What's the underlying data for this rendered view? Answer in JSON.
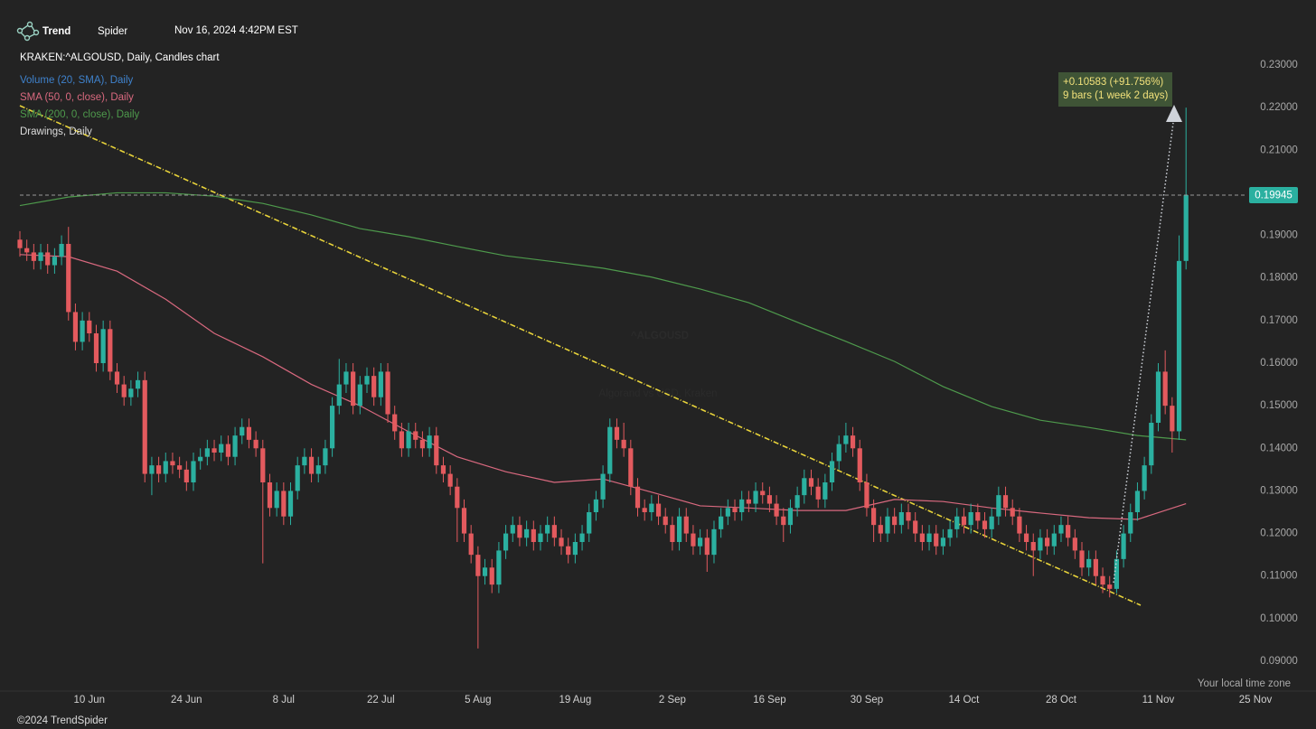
{
  "header": {
    "brand_bold": "Trend",
    "brand_light": "Spider",
    "timestamp": "Nov 16, 2024 4:42PM EST"
  },
  "footer": {
    "copyright": "©2024 TrendSpider",
    "timezone_note": "Your local time zone"
  },
  "chart_data": {
    "type": "candlestick",
    "title": "KRAKEN:^ALGOUSD, Daily, Candles chart",
    "watermark": "^ALGOUSD",
    "watermark_subtitle": "Algorand vs USD, Kraken",
    "up_color": "#2bb0a0",
    "down_color": "#e35a5e",
    "annotations": [
      "+0.10583 (+91.756%)",
      "9 bars (1 week 2 days)"
    ],
    "categories": [
      null,
      null,
      null,
      null,
      null,
      null,
      null,
      null,
      null,
      null,
      "10 Jun",
      null,
      null,
      null,
      null,
      null,
      null,
      null,
      null,
      null,
      null,
      null,
      null,
      null,
      "24 Jun",
      null,
      null,
      null,
      null,
      null,
      null,
      null,
      null,
      null,
      null,
      null,
      null,
      null,
      "8 Jul",
      null,
      null,
      null,
      null,
      null,
      null,
      null,
      null,
      null,
      null,
      null,
      null,
      null,
      "22 Jul",
      null,
      null,
      null,
      null,
      null,
      null,
      null,
      null,
      null,
      null,
      null,
      null,
      null,
      "5 Aug",
      null,
      null,
      null,
      null,
      null,
      null,
      null,
      null,
      null,
      null,
      null,
      null,
      null,
      "19 Aug",
      null,
      null,
      null,
      null,
      null,
      null,
      null,
      null,
      null,
      null,
      null,
      null,
      null,
      "2 Sep",
      null,
      null,
      null,
      null,
      null,
      null,
      null,
      null,
      null,
      null,
      null,
      null,
      null,
      "16 Sep",
      null,
      null,
      null,
      null,
      null,
      null,
      null,
      null,
      null,
      null,
      null,
      null,
      null,
      "30 Sep",
      null,
      null,
      null,
      null,
      null,
      null,
      null,
      null,
      null,
      null,
      null,
      null,
      null,
      "14 Oct",
      null,
      null,
      null,
      null,
      null,
      null,
      null,
      null,
      null,
      null,
      null,
      null,
      null,
      "28 Oct",
      null,
      null,
      null,
      null,
      null,
      null,
      null,
      null,
      null,
      null,
      null,
      null,
      null,
      "11 Nov",
      null,
      null,
      null,
      null,
      null,
      null,
      null,
      null,
      null,
      null,
      null,
      null,
      null,
      "25 Nov"
    ],
    "ohlc": [
      [
        0.189,
        0.191,
        0.185,
        0.187
      ],
      [
        0.187,
        0.189,
        0.184,
        0.186
      ],
      [
        0.186,
        0.188,
        0.182,
        0.184
      ],
      [
        0.184,
        0.188,
        0.182,
        0.186
      ],
      [
        0.186,
        0.188,
        0.181,
        0.183
      ],
      [
        0.183,
        0.187,
        0.181,
        0.185
      ],
      [
        0.185,
        0.19,
        0.183,
        0.188
      ],
      [
        0.188,
        0.192,
        0.17,
        0.172
      ],
      [
        0.172,
        0.174,
        0.163,
        0.165
      ],
      [
        0.165,
        0.172,
        0.163,
        0.17
      ],
      [
        0.17,
        0.172,
        0.165,
        0.167
      ],
      [
        0.167,
        0.169,
        0.158,
        0.16
      ],
      [
        0.16,
        0.17,
        0.158,
        0.168
      ],
      [
        0.168,
        0.17,
        0.156,
        0.158
      ],
      [
        0.158,
        0.16,
        0.153,
        0.155
      ],
      [
        0.155,
        0.157,
        0.15,
        0.152
      ],
      [
        0.152,
        0.156,
        0.15,
        0.154
      ],
      [
        0.154,
        0.158,
        0.152,
        0.156
      ],
      [
        0.156,
        0.158,
        0.132,
        0.134
      ],
      [
        0.134,
        0.138,
        0.129,
        0.136
      ],
      [
        0.136,
        0.138,
        0.132,
        0.134
      ],
      [
        0.134,
        0.139,
        0.132,
        0.137
      ],
      [
        0.137,
        0.139,
        0.134,
        0.136
      ],
      [
        0.136,
        0.138,
        0.133,
        0.135
      ],
      [
        0.135,
        0.137,
        0.13,
        0.132
      ],
      [
        0.132,
        0.139,
        0.13,
        0.137
      ],
      [
        0.137,
        0.14,
        0.135,
        0.138
      ],
      [
        0.138,
        0.142,
        0.136,
        0.14
      ],
      [
        0.14,
        0.142,
        0.137,
        0.139
      ],
      [
        0.139,
        0.143,
        0.137,
        0.141
      ],
      [
        0.141,
        0.143,
        0.136,
        0.138
      ],
      [
        0.138,
        0.145,
        0.136,
        0.143
      ],
      [
        0.143,
        0.147,
        0.141,
        0.145
      ],
      [
        0.145,
        0.147,
        0.14,
        0.142
      ],
      [
        0.142,
        0.144,
        0.138,
        0.14
      ],
      [
        0.14,
        0.142,
        0.113,
        0.132
      ],
      [
        0.132,
        0.134,
        0.124,
        0.126
      ],
      [
        0.126,
        0.132,
        0.124,
        0.13
      ],
      [
        0.13,
        0.132,
        0.122,
        0.124
      ],
      [
        0.124,
        0.132,
        0.122,
        0.13
      ],
      [
        0.13,
        0.138,
        0.128,
        0.136
      ],
      [
        0.136,
        0.14,
        0.134,
        0.138
      ],
      [
        0.138,
        0.14,
        0.132,
        0.134
      ],
      [
        0.134,
        0.138,
        0.132,
        0.136
      ],
      [
        0.136,
        0.142,
        0.134,
        0.14
      ],
      [
        0.14,
        0.152,
        0.138,
        0.15
      ],
      [
        0.15,
        0.161,
        0.148,
        0.155
      ],
      [
        0.155,
        0.16,
        0.153,
        0.158
      ],
      [
        0.158,
        0.16,
        0.148,
        0.15
      ],
      [
        0.15,
        0.157,
        0.148,
        0.155
      ],
      [
        0.155,
        0.159,
        0.153,
        0.157
      ],
      [
        0.157,
        0.159,
        0.15,
        0.152
      ],
      [
        0.152,
        0.16,
        0.15,
        0.158
      ],
      [
        0.158,
        0.16,
        0.146,
        0.148
      ],
      [
        0.148,
        0.15,
        0.142,
        0.144
      ],
      [
        0.144,
        0.146,
        0.138,
        0.14
      ],
      [
        0.14,
        0.146,
        0.138,
        0.144
      ],
      [
        0.144,
        0.146,
        0.14,
        0.142
      ],
      [
        0.142,
        0.144,
        0.138,
        0.14
      ],
      [
        0.14,
        0.145,
        0.138,
        0.143
      ],
      [
        0.143,
        0.145,
        0.134,
        0.136
      ],
      [
        0.136,
        0.138,
        0.132,
        0.134
      ],
      [
        0.134,
        0.136,
        0.129,
        0.131
      ],
      [
        0.131,
        0.133,
        0.118,
        0.126
      ],
      [
        0.126,
        0.128,
        0.118,
        0.12
      ],
      [
        0.12,
        0.122,
        0.113,
        0.115
      ],
      [
        0.115,
        0.117,
        0.093,
        0.11
      ],
      [
        0.11,
        0.114,
        0.108,
        0.112
      ],
      [
        0.112,
        0.114,
        0.106,
        0.108
      ],
      [
        0.108,
        0.118,
        0.106,
        0.116
      ],
      [
        0.116,
        0.122,
        0.114,
        0.12
      ],
      [
        0.12,
        0.124,
        0.118,
        0.122
      ],
      [
        0.122,
        0.124,
        0.117,
        0.119
      ],
      [
        0.119,
        0.123,
        0.117,
        0.121
      ],
      [
        0.121,
        0.123,
        0.116,
        0.118
      ],
      [
        0.118,
        0.122,
        0.116,
        0.12
      ],
      [
        0.12,
        0.124,
        0.118,
        0.122
      ],
      [
        0.122,
        0.124,
        0.117,
        0.119
      ],
      [
        0.119,
        0.121,
        0.115,
        0.117
      ],
      [
        0.117,
        0.119,
        0.113,
        0.115
      ],
      [
        0.115,
        0.12,
        0.113,
        0.118
      ],
      [
        0.118,
        0.122,
        0.116,
        0.12
      ],
      [
        0.12,
        0.127,
        0.118,
        0.125
      ],
      [
        0.125,
        0.13,
        0.123,
        0.128
      ],
      [
        0.128,
        0.136,
        0.126,
        0.134
      ],
      [
        0.134,
        0.147,
        0.132,
        0.145
      ],
      [
        0.145,
        0.147,
        0.14,
        0.142
      ],
      [
        0.142,
        0.146,
        0.138,
        0.14
      ],
      [
        0.14,
        0.142,
        0.129,
        0.131
      ],
      [
        0.131,
        0.133,
        0.124,
        0.126
      ],
      [
        0.126,
        0.128,
        0.123,
        0.125
      ],
      [
        0.125,
        0.129,
        0.123,
        0.127
      ],
      [
        0.127,
        0.129,
        0.122,
        0.124
      ],
      [
        0.124,
        0.126,
        0.12,
        0.122
      ],
      [
        0.122,
        0.124,
        0.116,
        0.118
      ],
      [
        0.118,
        0.126,
        0.116,
        0.124
      ],
      [
        0.124,
        0.126,
        0.118,
        0.12
      ],
      [
        0.12,
        0.122,
        0.115,
        0.117
      ],
      [
        0.117,
        0.121,
        0.115,
        0.119
      ],
      [
        0.119,
        0.121,
        0.111,
        0.115
      ],
      [
        0.115,
        0.123,
        0.113,
        0.121
      ],
      [
        0.121,
        0.126,
        0.119,
        0.124
      ],
      [
        0.124,
        0.128,
        0.122,
        0.126
      ],
      [
        0.126,
        0.128,
        0.123,
        0.125
      ],
      [
        0.125,
        0.13,
        0.123,
        0.128
      ],
      [
        0.128,
        0.13,
        0.125,
        0.127
      ],
      [
        0.127,
        0.132,
        0.125,
        0.13
      ],
      [
        0.13,
        0.132,
        0.127,
        0.129
      ],
      [
        0.129,
        0.131,
        0.125,
        0.127
      ],
      [
        0.127,
        0.129,
        0.122,
        0.124
      ],
      [
        0.124,
        0.126,
        0.118,
        0.122
      ],
      [
        0.122,
        0.128,
        0.12,
        0.126
      ],
      [
        0.126,
        0.131,
        0.124,
        0.129
      ],
      [
        0.129,
        0.135,
        0.127,
        0.133
      ],
      [
        0.133,
        0.135,
        0.129,
        0.131
      ],
      [
        0.131,
        0.133,
        0.126,
        0.128
      ],
      [
        0.128,
        0.134,
        0.126,
        0.132
      ],
      [
        0.132,
        0.139,
        0.13,
        0.137
      ],
      [
        0.137,
        0.143,
        0.135,
        0.141
      ],
      [
        0.141,
        0.146,
        0.139,
        0.143
      ],
      [
        0.143,
        0.145,
        0.138,
        0.14
      ],
      [
        0.14,
        0.142,
        0.13,
        0.132
      ],
      [
        0.132,
        0.134,
        0.124,
        0.126
      ],
      [
        0.126,
        0.128,
        0.118,
        0.122
      ],
      [
        0.122,
        0.124,
        0.118,
        0.12
      ],
      [
        0.12,
        0.126,
        0.118,
        0.124
      ],
      [
        0.124,
        0.126,
        0.12,
        0.122
      ],
      [
        0.122,
        0.127,
        0.12,
        0.125
      ],
      [
        0.125,
        0.127,
        0.121,
        0.123
      ],
      [
        0.123,
        0.125,
        0.118,
        0.12
      ],
      [
        0.12,
        0.122,
        0.116,
        0.118
      ],
      [
        0.118,
        0.122,
        0.116,
        0.12
      ],
      [
        0.12,
        0.122,
        0.115,
        0.117
      ],
      [
        0.117,
        0.121,
        0.115,
        0.119
      ],
      [
        0.119,
        0.123,
        0.117,
        0.121
      ],
      [
        0.121,
        0.126,
        0.119,
        0.124
      ],
      [
        0.124,
        0.126,
        0.12,
        0.122
      ],
      [
        0.122,
        0.127,
        0.12,
        0.125
      ],
      [
        0.125,
        0.127,
        0.121,
        0.123
      ],
      [
        0.123,
        0.125,
        0.119,
        0.121
      ],
      [
        0.121,
        0.126,
        0.119,
        0.124
      ],
      [
        0.124,
        0.131,
        0.122,
        0.129
      ],
      [
        0.129,
        0.131,
        0.124,
        0.126
      ],
      [
        0.126,
        0.128,
        0.122,
        0.124
      ],
      [
        0.124,
        0.126,
        0.118,
        0.12
      ],
      [
        0.12,
        0.122,
        0.116,
        0.118
      ],
      [
        0.118,
        0.12,
        0.11,
        0.116
      ],
      [
        0.116,
        0.121,
        0.114,
        0.119
      ],
      [
        0.119,
        0.121,
        0.115,
        0.117
      ],
      [
        0.117,
        0.122,
        0.115,
        0.12
      ],
      [
        0.12,
        0.124,
        0.118,
        0.122
      ],
      [
        0.122,
        0.124,
        0.117,
        0.119
      ],
      [
        0.119,
        0.121,
        0.114,
        0.116
      ],
      [
        0.116,
        0.118,
        0.11,
        0.112
      ],
      [
        0.112,
        0.116,
        0.11,
        0.114
      ],
      [
        0.114,
        0.116,
        0.108,
        0.11
      ],
      [
        0.11,
        0.112,
        0.106,
        0.108
      ],
      [
        0.108,
        0.11,
        0.105,
        0.107
      ],
      [
        0.107,
        0.116,
        0.106,
        0.114
      ],
      [
        0.114,
        0.122,
        0.112,
        0.12
      ],
      [
        0.12,
        0.127,
        0.118,
        0.125
      ],
      [
        0.125,
        0.132,
        0.123,
        0.13
      ],
      [
        0.13,
        0.138,
        0.128,
        0.136
      ],
      [
        0.136,
        0.148,
        0.134,
        0.146
      ],
      [
        0.146,
        0.16,
        0.144,
        0.158
      ],
      [
        0.158,
        0.163,
        0.148,
        0.15
      ],
      [
        0.15,
        0.152,
        0.139,
        0.144
      ],
      [
        0.144,
        0.19,
        0.142,
        0.184
      ],
      [
        0.184,
        0.22,
        0.182,
        0.19945
      ],
      null,
      null,
      null,
      null,
      null,
      null,
      null,
      null,
      null,
      null
    ],
    "series": [
      {
        "name": "Volume (20, SMA), Daily",
        "color": "#3f82cc"
      },
      {
        "name": "SMA (50, 0, close), Daily",
        "color": "#d9697f",
        "x": [
          0,
          7,
          14,
          21,
          28,
          35,
          42,
          49,
          56,
          63,
          70,
          77,
          84,
          91,
          98,
          105,
          112,
          119,
          126,
          133,
          140,
          147,
          154,
          161,
          168
        ],
        "values": [
          0.1855,
          0.185,
          0.1816,
          0.175,
          0.167,
          0.1615,
          0.155,
          0.15,
          0.1439,
          0.138,
          0.1345,
          0.132,
          0.1328,
          0.1297,
          0.1265,
          0.126,
          0.1254,
          0.1254,
          0.128,
          0.1275,
          0.126,
          0.1248,
          0.1237,
          0.1233,
          0.127
        ]
      },
      {
        "name": "SMA (200, 0, close), Daily",
        "color": "#4e9a4c",
        "x": [
          0,
          7,
          14,
          21,
          28,
          35,
          42,
          49,
          56,
          63,
          70,
          77,
          84,
          91,
          98,
          105,
          112,
          119,
          126,
          133,
          140,
          147,
          154,
          161,
          168
        ],
        "values": [
          0.197,
          0.199,
          0.2,
          0.2,
          0.1992,
          0.1975,
          0.1948,
          0.1916,
          0.1897,
          0.1874,
          0.1852,
          0.1838,
          0.1823,
          0.1802,
          0.1774,
          0.1742,
          0.1696,
          0.1651,
          0.1604,
          0.1545,
          0.1498,
          0.1466,
          0.1449,
          0.143,
          0.142
        ]
      },
      {
        "name": "Drawings, Daily",
        "color": "#dddddd"
      }
    ],
    "ylim": [
      0.09,
      0.23
    ],
    "yticks": [
      {
        "value": 0.09,
        "label": "0.09000"
      },
      {
        "value": 0.1,
        "label": "0.10000"
      },
      {
        "value": 0.11,
        "label": "0.11000"
      },
      {
        "value": 0.12,
        "label": "0.12000"
      },
      {
        "value": 0.13,
        "label": "0.13000"
      },
      {
        "value": 0.14,
        "label": "0.14000"
      },
      {
        "value": 0.15,
        "label": "0.15000"
      },
      {
        "value": 0.16,
        "label": "0.16000"
      },
      {
        "value": 0.17,
        "label": "0.17000"
      },
      {
        "value": 0.18,
        "label": "0.18000"
      },
      {
        "value": 0.19,
        "label": "0.19000"
      },
      {
        "value": 0.2,
        "label": "0.20000"
      },
      {
        "value": 0.21,
        "label": "0.21000"
      },
      {
        "value": 0.22,
        "label": "0.22000"
      },
      {
        "value": 0.23,
        "label": "0.23000"
      }
    ]
  }
}
